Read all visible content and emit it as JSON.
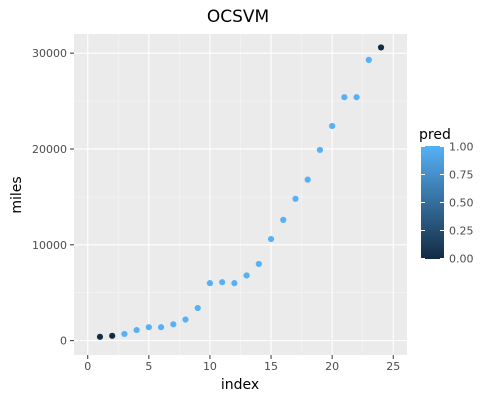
{
  "chart_data": {
    "type": "scatter",
    "title": "OCSVM",
    "xlabel": "index",
    "ylabel": "miles",
    "xlim": [
      0,
      25
    ],
    "ylim": [
      0,
      30000
    ],
    "x_ticks": [
      0,
      5,
      10,
      15,
      20,
      25
    ],
    "y_ticks": [
      0,
      10000,
      20000,
      30000
    ],
    "grid": true,
    "legend": {
      "title": "pred",
      "placement": "right",
      "ticks": [
        0.0,
        0.25,
        0.5,
        0.75,
        1.0
      ],
      "tick_labels": [
        "0.00",
        "0.25",
        "0.50",
        "0.75",
        "1.00"
      ],
      "color_low": "#132B43",
      "color_high": "#56B1F7"
    },
    "points": [
      {
        "x": 1,
        "y": 400,
        "pred": 0
      },
      {
        "x": 2,
        "y": 500,
        "pred": 0
      },
      {
        "x": 3,
        "y": 700,
        "pred": 1
      },
      {
        "x": 4,
        "y": 1100,
        "pred": 1
      },
      {
        "x": 5,
        "y": 1400,
        "pred": 1
      },
      {
        "x": 6,
        "y": 1400,
        "pred": 1
      },
      {
        "x": 7,
        "y": 1700,
        "pred": 1
      },
      {
        "x": 8,
        "y": 2200,
        "pred": 1
      },
      {
        "x": 9,
        "y": 3400,
        "pred": 1
      },
      {
        "x": 10,
        "y": 6000,
        "pred": 1
      },
      {
        "x": 11,
        "y": 6100,
        "pred": 1
      },
      {
        "x": 12,
        "y": 6000,
        "pred": 1
      },
      {
        "x": 13,
        "y": 6800,
        "pred": 1
      },
      {
        "x": 14,
        "y": 8000,
        "pred": 1
      },
      {
        "x": 15,
        "y": 10600,
        "pred": 1
      },
      {
        "x": 16,
        "y": 12600,
        "pred": 1
      },
      {
        "x": 17,
        "y": 14800,
        "pred": 1
      },
      {
        "x": 18,
        "y": 16800,
        "pred": 1
      },
      {
        "x": 19,
        "y": 19900,
        "pred": 1
      },
      {
        "x": 20,
        "y": 22400,
        "pred": 1
      },
      {
        "x": 21,
        "y": 25400,
        "pred": 1
      },
      {
        "x": 22,
        "y": 25400,
        "pred": 1
      },
      {
        "x": 23,
        "y": 29300,
        "pred": 1
      },
      {
        "x": 24,
        "y": 30600,
        "pred": 0
      }
    ]
  }
}
